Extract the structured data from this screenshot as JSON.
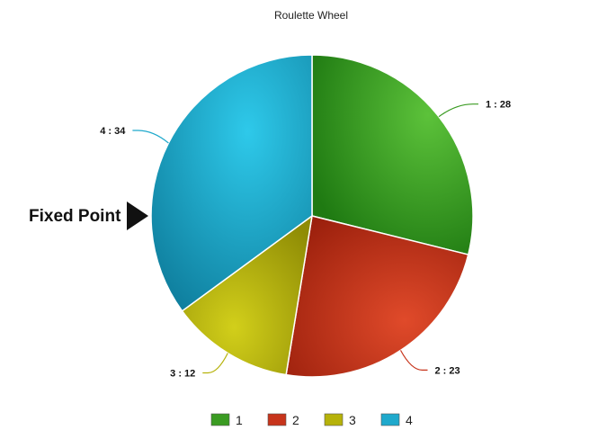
{
  "chart_data": {
    "type": "pie",
    "title": "Roulette Wheel",
    "categories": [
      "1",
      "2",
      "3",
      "4"
    ],
    "values": [
      28,
      23,
      12,
      34
    ],
    "data_labels": [
      "1 : 28",
      "2 : 23",
      "3 : 12",
      "4 : 34"
    ],
    "colors": [
      "#3a9b22",
      "#c7341b",
      "#b6b20a",
      "#1fa9cc"
    ],
    "legend_position": "bottom",
    "grid": false
  },
  "annotation": {
    "text": "Fixed Point",
    "marker": "right-pointing-triangle-icon"
  }
}
